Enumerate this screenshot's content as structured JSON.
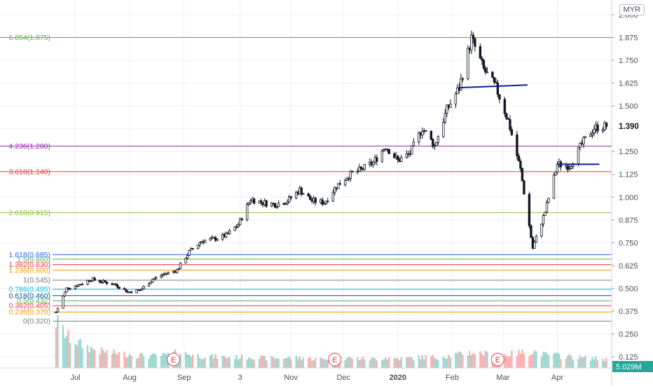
{
  "currency": "MYR",
  "last_price_label": "1.390",
  "volume_label": "5.029M",
  "chart_data": {
    "type": "candlestick",
    "title": "",
    "ylim": [
      0.0,
      2.0
    ],
    "y_ticks": [
      "2.000",
      "1.875",
      "1.750",
      "1.625",
      "1.500",
      "1.375",
      "1.250",
      "1.125",
      "1.000",
      "0.875",
      "0.750",
      "0.625",
      "0.500",
      "0.375",
      "0.250",
      "0.125"
    ],
    "x_ticks": [
      {
        "label": "Jul",
        "date": "2019-07-01"
      },
      {
        "label": "Aug",
        "date": "2019-08-01"
      },
      {
        "label": "Sep",
        "date": "2019-09-01"
      },
      {
        "label": "3",
        "date": "2019-10-03"
      },
      {
        "label": "Nov",
        "date": "2019-11-01"
      },
      {
        "label": "Dec",
        "date": "2019-12-01"
      },
      {
        "label": "2020",
        "date": "2020-01-01",
        "bold": true
      },
      {
        "label": "Feb",
        "date": "2020-02-01"
      },
      {
        "label": "Mar",
        "date": "2020-03-01"
      },
      {
        "label": "Apr",
        "date": "2020-04-01"
      }
    ],
    "fib_levels": [
      {
        "label": "6.854(1.875)",
        "value": 1.875,
        "color": "#4caf50"
      },
      {
        "label": "4.236(1.280)",
        "value": 1.28,
        "color": "#9c27b0"
      },
      {
        "label": "3.618(1.140)",
        "value": 1.14,
        "color": "#f23645"
      },
      {
        "label": "2.618(0.915)",
        "value": 0.915,
        "color": "#8bc34a"
      },
      {
        "label": "1.618(0.685)",
        "value": 0.685,
        "color": "#2962ff"
      },
      {
        "label": "1.5(0.660)",
        "value": 0.66,
        "color": "#4caf50"
      },
      {
        "label": "1.382(0.630)",
        "value": 0.63,
        "color": "#f23645"
      },
      {
        "label": "1.236(0.600)",
        "value": 0.6,
        "color": "#ff9800"
      },
      {
        "label": "1(0.545)",
        "value": 0.545,
        "color": "#787b86"
      },
      {
        "label": "0.786(0.495)",
        "value": 0.495,
        "color": "#00bcd4"
      },
      {
        "label": "0.618(0.460)",
        "value": 0.46,
        "color": "#0d47a1"
      },
      {
        "label": "0.5(0.432)",
        "value": 0.432,
        "color": "#4caf50"
      },
      {
        "label": "0.382(0.405)",
        "value": 0.405,
        "color": "#f23645"
      },
      {
        "label": "0.236(0.370)",
        "value": 0.37,
        "color": "#ff9800"
      },
      {
        "label": "0(0.320)",
        "value": 0.32,
        "color": "#787b86"
      }
    ],
    "trendlines": [
      {
        "from": {
          "date": "2020-02-05",
          "value": 1.6
        },
        "to": {
          "date": "2020-03-15",
          "value": 1.615
        },
        "color": "#0d1fa8"
      },
      {
        "from": {
          "date": "2020-04-01",
          "value": 1.18
        },
        "to": {
          "date": "2020-04-25",
          "value": 1.18
        },
        "color": "#0d1fa8"
      }
    ],
    "earnings_markers": [
      {
        "label": "E",
        "date": "2019-08-26"
      },
      {
        "label": "E",
        "date": "2019-11-26"
      },
      {
        "label": "E",
        "date": "2020-02-27"
      }
    ],
    "series": [
      {
        "dates": [
          "2019-06-20",
          "2019-06-26",
          "2019-07-03",
          "2019-07-10",
          "2019-07-17",
          "2019-07-24",
          "2019-07-31",
          "2019-08-07",
          "2019-08-14",
          "2019-08-21",
          "2019-08-28",
          "2019-09-04",
          "2019-09-11",
          "2019-09-18",
          "2019-09-25",
          "2019-10-02",
          "2019-10-09",
          "2019-10-16",
          "2019-10-23",
          "2019-10-30",
          "2019-11-06",
          "2019-11-13",
          "2019-11-20",
          "2019-11-27",
          "2019-12-04",
          "2019-12-11",
          "2019-12-18",
          "2019-12-25",
          "2020-01-01",
          "2020-01-08",
          "2020-01-15",
          "2020-01-22",
          "2020-01-29",
          "2020-02-05",
          "2020-02-12",
          "2020-02-19",
          "2020-02-26",
          "2020-03-04",
          "2020-03-11",
          "2020-03-18",
          "2020-03-25",
          "2020-04-01",
          "2020-04-08",
          "2020-04-15",
          "2020-04-22",
          "2020-04-29"
        ],
        "close": [
          0.37,
          0.5,
          0.52,
          0.55,
          0.535,
          0.52,
          0.48,
          0.49,
          0.55,
          0.58,
          0.6,
          0.7,
          0.76,
          0.77,
          0.79,
          0.85,
          0.99,
          0.97,
          0.96,
          0.98,
          1.04,
          0.98,
          0.97,
          1.06,
          1.12,
          1.15,
          1.19,
          1.28,
          1.2,
          1.24,
          1.38,
          1.28,
          1.48,
          1.6,
          1.87,
          1.7,
          1.6,
          1.42,
          1.15,
          0.72,
          0.92,
          1.18,
          1.17,
          1.29,
          1.38,
          1.39
        ],
        "volume_k": [
          15000,
          7000,
          4200,
          2600,
          1900,
          1500,
          1300,
          1100,
          1000,
          1100,
          1600,
          1300,
          1000,
          900,
          800,
          800,
          900,
          700,
          650,
          700,
          750,
          600,
          550,
          650,
          700,
          600,
          550,
          750,
          600,
          650,
          850,
          800,
          1000,
          1300,
          1700,
          1400,
          1200,
          1300,
          1600,
          1900,
          1200,
          1100,
          900,
          700,
          650,
          500
        ]
      }
    ]
  }
}
